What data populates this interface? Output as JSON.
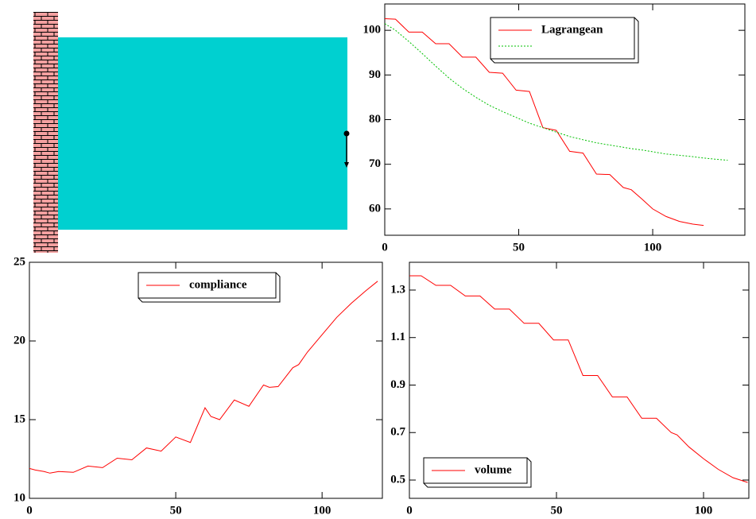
{
  "chart_data": [
    {
      "type": "line",
      "xlim": [
        0,
        134.4
      ],
      "ylim": [
        54.1,
        105.9
      ],
      "xticks": [
        0,
        50,
        100
      ],
      "yticks": [
        60,
        70,
        80,
        90,
        100
      ],
      "legend": "top-center",
      "x": [
        0,
        4,
        9,
        14,
        19,
        24,
        29,
        34,
        39,
        44,
        49,
        54,
        59,
        64,
        69,
        74,
        79,
        84,
        89,
        92,
        96,
        100,
        105,
        110,
        115,
        119,
        124,
        128
      ],
      "series": [
        {
          "name": "Lagrangean",
          "color": "#ff0000",
          "dash": "none",
          "values": [
            102.6,
            102.5,
            99.6,
            99.6,
            97,
            97,
            94,
            94,
            90.6,
            90.4,
            86.6,
            86.3,
            78.2,
            77.6,
            72.9,
            72.5,
            67.8,
            67.7,
            64.8,
            64.3,
            62.2,
            60,
            58.3,
            57.2,
            56.6,
            56.3,
            null,
            null
          ]
        },
        {
          "color": "#00c000",
          "dash": "2 2",
          "values": [
            101.5,
            100,
            97.5,
            94.8,
            92,
            89.3,
            87,
            85,
            83.2,
            81.8,
            80.5,
            79.2,
            78.2,
            77.2,
            76.2,
            75.5,
            74.8,
            74.3,
            73.8,
            73.5,
            73.2,
            72.8,
            72.3,
            72,
            71.7,
            71.4,
            71.1,
            70.9
          ]
        }
      ]
    },
    {
      "type": "line",
      "xlim": [
        0,
        120.6
      ],
      "ylim": [
        10,
        25
      ],
      "xticks": [
        0,
        50,
        100
      ],
      "yticks": [
        10,
        15,
        20,
        25
      ],
      "legend": "top-center",
      "x": [
        0,
        2,
        5,
        7,
        10,
        15,
        20,
        25,
        30,
        35,
        40,
        45,
        50,
        55,
        60,
        62,
        65,
        70,
        75,
        80,
        82,
        85,
        90,
        92,
        95,
        100,
        105,
        110,
        115,
        119
      ],
      "series": [
        {
          "name": "compliance",
          "color": "#ff0000",
          "dash": "none",
          "values": [
            11.9,
            11.8,
            11.7,
            11.6,
            11.7,
            11.65,
            12.05,
            11.95,
            12.55,
            12.45,
            13.2,
            13,
            13.9,
            13.55,
            15.75,
            15.2,
            15,
            16.25,
            15.85,
            17.2,
            17.05,
            17.1,
            18.3,
            18.5,
            19.3,
            20.4,
            21.5,
            22.4,
            23.2,
            23.8
          ]
        }
      ]
    },
    {
      "type": "line",
      "xlim": [
        0,
        115.4
      ],
      "ylim": [
        0.423,
        1.417
      ],
      "xticks": [
        0,
        50,
        100
      ],
      "yticks": [
        0.5,
        0.7,
        0.9,
        1.1,
        1.3
      ],
      "legend": "bottom-left",
      "x": [
        0,
        4,
        9,
        14,
        19,
        24,
        29,
        34,
        39,
        44,
        49,
        54,
        59,
        64,
        69,
        74,
        79,
        84,
        89,
        91,
        95,
        100,
        105,
        110,
        115
      ],
      "series": [
        {
          "name": "volume",
          "color": "#ff0000",
          "dash": "none",
          "values": [
            1.36,
            1.36,
            1.32,
            1.32,
            1.275,
            1.275,
            1.22,
            1.22,
            1.16,
            1.16,
            1.09,
            1.09,
            0.94,
            0.94,
            0.85,
            0.85,
            0.76,
            0.76,
            0.7,
            0.69,
            0.64,
            0.59,
            0.545,
            0.51,
            0.49
          ]
        }
      ]
    }
  ]
}
